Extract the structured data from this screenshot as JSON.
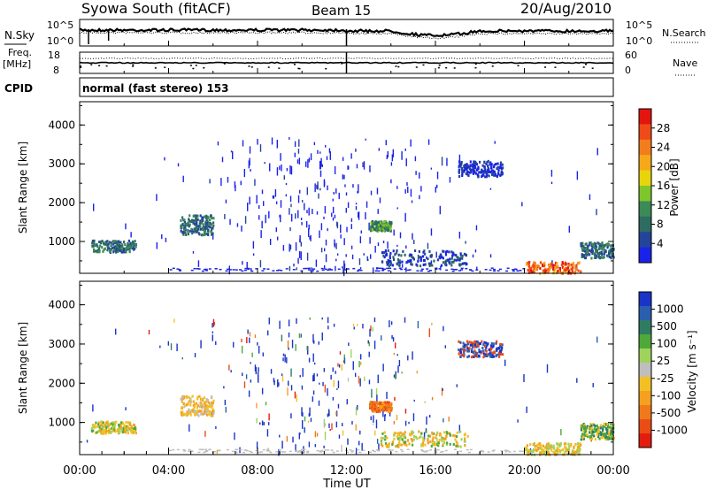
{
  "header": {
    "station": "Syowa South (fitACF)",
    "beam": "Beam 15",
    "date": "20/Aug/2010"
  },
  "panels": {
    "noise": {
      "left_label": "N.Sky",
      "right_label": "N.Search",
      "left_ticks": [
        "10^5",
        "10^0"
      ],
      "right_ticks": [
        "10^5",
        "10^0"
      ]
    },
    "freq": {
      "left_label_1": "Freq.",
      "left_label_2": "[MHz]",
      "right_label": "Nave",
      "left_ticks": [
        "18",
        "8"
      ],
      "right_ticks": [
        "60",
        "0"
      ]
    },
    "cpid": {
      "label": "CPID",
      "text": "normal (fast stereo) 153"
    }
  },
  "chart_data": [
    {
      "type": "heatmap",
      "title": "",
      "ylabel": "Slant Range [km]",
      "xlabel": "",
      "ylim": [
        180,
        4600
      ],
      "yticks": [
        1000,
        2000,
        3000,
        4000
      ],
      "xlim": [
        0,
        24
      ],
      "colorbar": {
        "label": "Power [dB]",
        "ticks": [
          "4",
          "8",
          "12",
          "16",
          "20",
          "24",
          "28"
        ],
        "colors": [
          "#1b22e8",
          "#24449a",
          "#2e6b60",
          "#3c8a58",
          "#7fc52c",
          "#e8d40c",
          "#f5a91a",
          "#f37d1d",
          "#f04a18",
          "#e4140f"
        ]
      }
    },
    {
      "type": "heatmap",
      "title": "",
      "ylabel": "Slant Range [km]",
      "xlabel": "Time UT",
      "ylim": [
        180,
        4600
      ],
      "yticks": [
        1000,
        2000,
        3000,
        4000
      ],
      "xlim": [
        0,
        24
      ],
      "xticks": [
        "00:00",
        "04:00",
        "08:00",
        "12:00",
        "16:00",
        "20:00",
        "00:00"
      ],
      "colorbar": {
        "label": "Velocity [m s⁻¹]",
        "ticks": [
          "1000",
          "500",
          "100",
          "25",
          "-25",
          "-100",
          "-500",
          "-1000"
        ],
        "colors": [
          "#1a33c8",
          "#2a5fb0",
          "#2f7c63",
          "#4fa83a",
          "#9fd35c",
          "#bebebe",
          "#f3c024",
          "#f6a020",
          "#f07a1a",
          "#ea4c16",
          "#e21d10"
        ]
      }
    }
  ]
}
